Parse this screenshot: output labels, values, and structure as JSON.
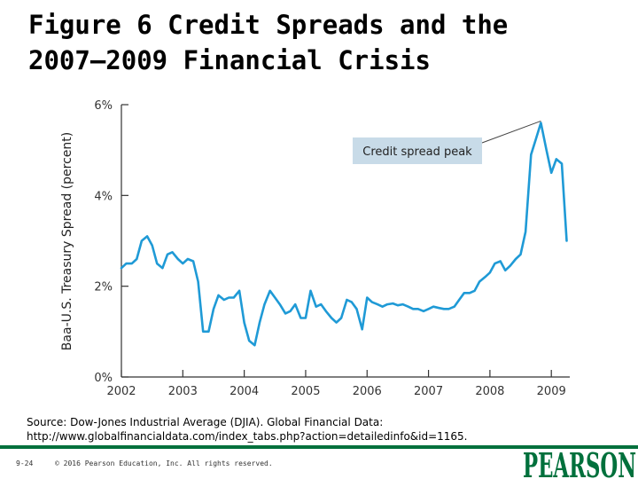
{
  "slide": {
    "title_line1": "Figure 6 Credit Spreads and the",
    "title_line2": "2007–2009 Financial Crisis",
    "source_line1": "Source: Dow-Jones Industrial Average (DJIA). Global Financial Data:",
    "source_line2": "http://www.globalfinancialdata.com/index_tabs.php?action=detailedinfo&id=1165.",
    "slide_number": "9-24",
    "copyright": "© 2016 Pearson Education, Inc. All rights reserved.",
    "logo_text": "PEARSON",
    "accent_color": "#00703c"
  },
  "chart_data": {
    "type": "line",
    "title": "",
    "xlabel": "",
    "ylabel": "Baa-U.S. Treasury Spread (percent)",
    "x_ticks": [
      "2002",
      "2003",
      "2004",
      "2005",
      "2006",
      "2007",
      "2008",
      "2009"
    ],
    "y_ticks": [
      "0%",
      "2%",
      "4%",
      "6%"
    ],
    "xlim": [
      2002.0,
      2009.3
    ],
    "ylim": [
      0,
      6
    ],
    "grid": false,
    "line_color": "#1f9ad6",
    "annotation": {
      "text": "Credit spread peak",
      "x": 2008.83,
      "y": 5.6
    },
    "series": [
      {
        "x": [
          2002.0,
          2002.08,
          2002.17,
          2002.25,
          2002.33,
          2002.42,
          2002.5,
          2002.58,
          2002.67,
          2002.75,
          2002.83,
          2002.92,
          2003.0,
          2003.08,
          2003.17,
          2003.25,
          2003.33,
          2003.42,
          2003.5,
          2003.58,
          2003.67,
          2003.75,
          2003.83,
          2003.92,
          2004.0,
          2004.08,
          2004.17,
          2004.25,
          2004.33,
          2004.42,
          2004.5,
          2004.58,
          2004.67,
          2004.75,
          2004.83,
          2004.92,
          2005.0,
          2005.08,
          2005.17,
          2005.25,
          2005.33,
          2005.42,
          2005.5,
          2005.58,
          2005.67,
          2005.75,
          2005.83,
          2005.92,
          2006.0,
          2006.08,
          2006.17,
          2006.25,
          2006.33,
          2006.42,
          2006.5,
          2006.58,
          2006.67,
          2006.75,
          2006.83,
          2006.92,
          2007.0,
          2007.08,
          2007.17,
          2007.25,
          2007.33,
          2007.42,
          2007.5,
          2007.58,
          2007.67,
          2007.75,
          2007.83,
          2007.92,
          2008.0,
          2008.08,
          2008.17,
          2008.25,
          2008.33,
          2008.42,
          2008.5,
          2008.58,
          2008.67,
          2008.75,
          2008.83,
          2008.92,
          2009.0,
          2009.08,
          2009.17,
          2009.25
        ],
        "y": [
          2.4,
          2.5,
          2.5,
          2.6,
          3.0,
          3.1,
          2.9,
          2.5,
          2.4,
          2.7,
          2.75,
          2.6,
          2.5,
          2.6,
          2.55,
          2.1,
          1.0,
          1.0,
          1.5,
          1.8,
          1.7,
          1.75,
          1.75,
          1.9,
          1.2,
          0.8,
          0.7,
          1.2,
          1.6,
          1.9,
          1.75,
          1.6,
          1.4,
          1.45,
          1.6,
          1.3,
          1.3,
          1.9,
          1.55,
          1.6,
          1.45,
          1.3,
          1.2,
          1.3,
          1.7,
          1.65,
          1.5,
          1.05,
          1.75,
          1.65,
          1.6,
          1.55,
          1.6,
          1.62,
          1.58,
          1.6,
          1.55,
          1.5,
          1.5,
          1.45,
          1.5,
          1.55,
          1.52,
          1.5,
          1.5,
          1.55,
          1.7,
          1.85,
          1.85,
          1.9,
          2.1,
          2.2,
          2.3,
          2.5,
          2.55,
          2.35,
          2.45,
          2.6,
          2.7,
          3.2,
          4.9,
          5.25,
          5.6,
          5.0,
          4.5,
          4.8,
          4.7,
          3.0
        ]
      }
    ]
  }
}
